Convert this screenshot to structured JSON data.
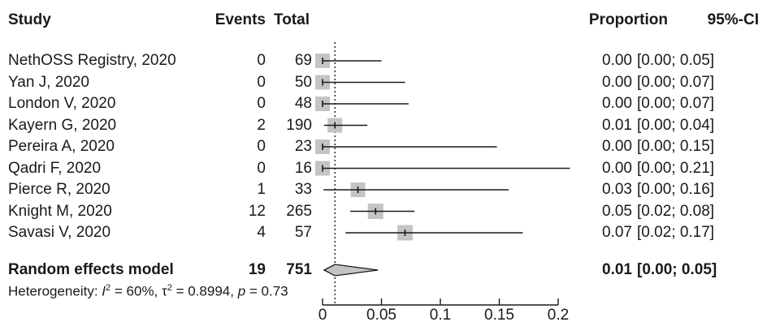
{
  "headers": {
    "study": "Study",
    "events": "Events",
    "total": "Total",
    "proportion": "Proportion",
    "ci": "95%-CI"
  },
  "chart_data": {
    "type": "forest",
    "xlim": [
      0,
      0.2
    ],
    "ticks": [
      "0",
      "0.05",
      "0.1",
      "0.15",
      "0.2"
    ],
    "tick_values": [
      0,
      0.05,
      0.1,
      0.15,
      0.2
    ],
    "studies": [
      {
        "study": "NethOSS Registry, 2020",
        "events": "0",
        "total": "69",
        "proportion": "0.00",
        "ci": "[0.00; 0.05]",
        "est": 0.0,
        "lo": 0.0,
        "hi": 0.05,
        "weight": 0.9
      },
      {
        "study": "Yan J, 2020",
        "events": "0",
        "total": "50",
        "proportion": "0.00",
        "ci": "[0.00; 0.07]",
        "est": 0.0,
        "lo": 0.0,
        "hi": 0.07,
        "weight": 0.9
      },
      {
        "study": "London V, 2020",
        "events": "0",
        "total": "48",
        "proportion": "0.00",
        "ci": "[0.00; 0.07]",
        "est": 0.0,
        "lo": 0.0,
        "hi": 0.073,
        "weight": 0.9
      },
      {
        "study": "Kayern G, 2020",
        "events": "2",
        "total": "190",
        "proportion": "0.01",
        "ci": "[0.00; 0.04]",
        "est": 0.0105,
        "lo": 0.0013,
        "hi": 0.038,
        "weight": 0.9
      },
      {
        "study": "Pereira A, 2020",
        "events": "0",
        "total": "23",
        "proportion": "0.00",
        "ci": "[0.00; 0.15]",
        "est": 0.0,
        "lo": 0.0,
        "hi": 0.148,
        "weight": 0.9
      },
      {
        "study": "Qadri F, 2020",
        "events": "0",
        "total": "16",
        "proportion": "0.00",
        "ci": "[0.00; 0.21]",
        "est": 0.0,
        "lo": 0.0,
        "hi": 0.21,
        "weight": 0.9
      },
      {
        "study": "Pierce R, 2020",
        "events": "1",
        "total": "33",
        "proportion": "0.03",
        "ci": "[0.00; 0.16]",
        "est": 0.03,
        "lo": 0.0008,
        "hi": 0.158,
        "weight": 0.9
      },
      {
        "study": "Knight M, 2020",
        "events": "12",
        "total": "265",
        "proportion": "0.05",
        "ci": "[0.02; 0.08]",
        "est": 0.045,
        "lo": 0.0235,
        "hi": 0.078,
        "weight": 0.95
      },
      {
        "study": "Savasi V, 2020",
        "events": "4",
        "total": "57",
        "proportion": "0.07",
        "ci": "[0.02; 0.17]",
        "est": 0.07,
        "lo": 0.0195,
        "hi": 0.17,
        "weight": 0.95
      }
    ],
    "pooled": {
      "study": "Random effects model",
      "events": "19",
      "total": "751",
      "proportion": "0.01",
      "ci": "[0.00; 0.05]",
      "est": 0.0105,
      "lo": 0.0013,
      "hi": 0.047
    },
    "reference_line": 0.0105,
    "heterogeneity": {
      "prefix": "Heterogeneity: ",
      "i2_symbol": "I",
      "i2_value": " = 60%, ",
      "tau2_symbol": "τ",
      "tau2_value": " = 0.8994, ",
      "p_symbol": "p",
      "p_value": " = 0.73"
    },
    "colors": {
      "square": "#c4c4c4",
      "line": "#1a1a1a",
      "diamond": "#c4c4c4"
    }
  }
}
